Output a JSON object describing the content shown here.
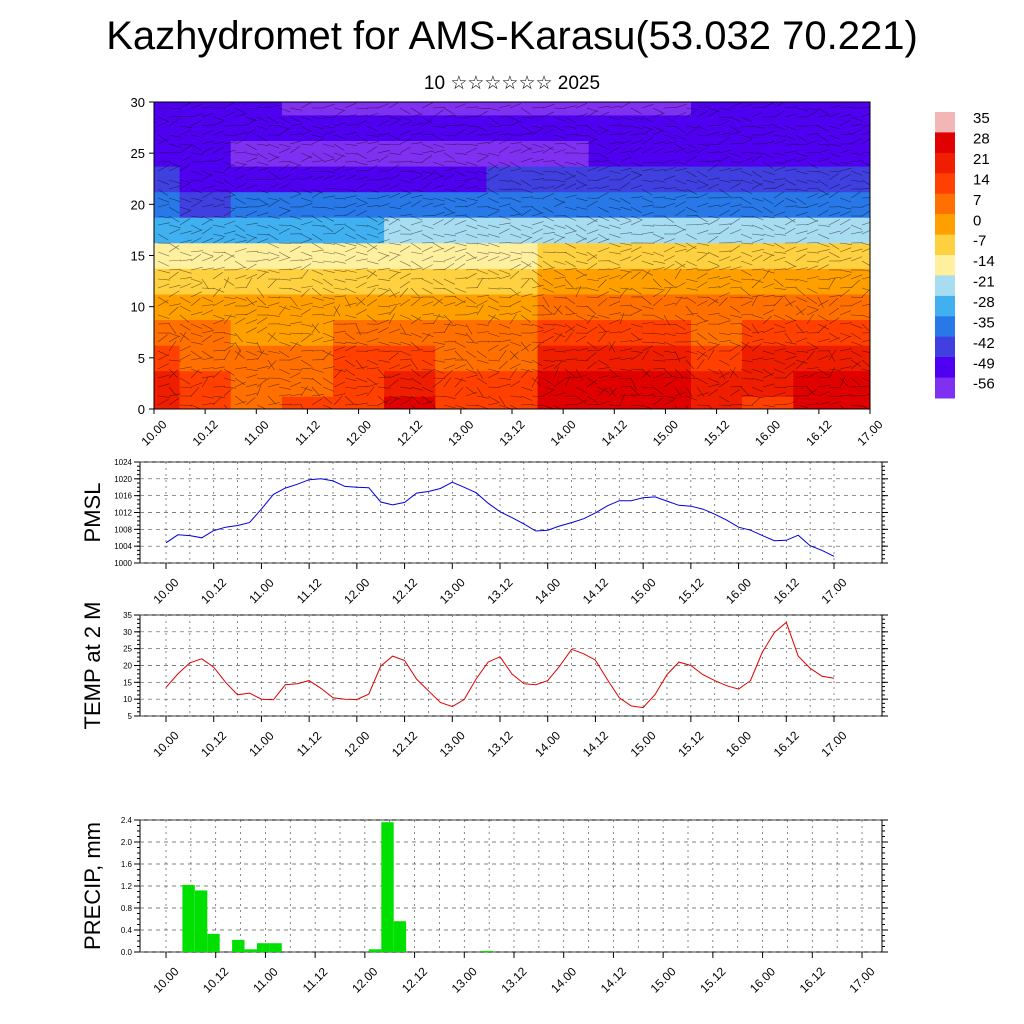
{
  "title": "Kazhydromet for AMS-Karasu(53.032 70.221)",
  "subtitle": "10 ☆☆☆☆☆☆ 2025",
  "time_labels": [
    "10.00",
    "10.12",
    "11.00",
    "11.12",
    "12.00",
    "12.12",
    "13.00",
    "13.12",
    "14.00",
    "14.12",
    "15.00",
    "15.12",
    "16.00",
    "16.12",
    "17.00"
  ],
  "colors": {
    "pmsl_line": "#0000dd",
    "temp_line": "#dd0000",
    "precip_bar": "#00e000"
  },
  "chart_data": [
    {
      "type": "heatmap",
      "title": "",
      "xlabel": "",
      "ylabel": "",
      "ylim": [
        0,
        30
      ],
      "yticks": [
        0,
        5,
        10,
        15,
        20,
        25,
        30
      ],
      "categories": [
        "10.00",
        "10.12",
        "11.00",
        "11.12",
        "12.00",
        "12.12",
        "13.00",
        "13.12",
        "14.00",
        "14.12",
        "15.00",
        "15.12",
        "16.00",
        "16.12",
        "17.00"
      ],
      "overlay": "wind barbs",
      "colorbar": {
        "labels": [
          "35",
          "28",
          "21",
          "14",
          "7",
          "0",
          "-7",
          "-14",
          "-21",
          "-28",
          "-35",
          "-42",
          "-49",
          "-56"
        ],
        "colors": [
          "#f2b6b6",
          "#e00000",
          "#f01e00",
          "#ff4000",
          "#ff7000",
          "#ffa000",
          "#ffd040",
          "#fff0a0",
          "#a8dcf0",
          "#40b0f0",
          "#2878e8",
          "#4040e0",
          "#5000f0",
          "#8030f0"
        ]
      },
      "y": [
        0,
        2.5,
        5,
        7.5,
        10,
        12.5,
        15,
        17.5,
        20,
        22.5,
        25,
        27.5,
        30
      ],
      "values": [
        [
          24,
          14,
          10,
          12,
          16,
          26,
          12,
          12,
          30,
          31,
          30,
          20,
          17,
          28,
          30
        ],
        [
          20,
          13,
          9,
          10,
          14,
          20,
          11,
          12,
          27,
          28,
          26,
          18,
          19,
          25,
          26
        ],
        [
          13,
          10,
          7,
          8,
          11,
          14,
          9,
          10,
          22,
          22,
          20,
          16,
          21,
          22,
          20
        ],
        [
          6,
          5,
          3,
          3,
          5,
          7,
          5,
          5,
          12,
          13,
          12,
          10,
          14,
          15,
          14
        ],
        [
          1,
          0,
          -1,
          -1,
          1,
          2,
          1,
          1,
          5,
          6,
          6,
          6,
          8,
          9,
          9
        ],
        [
          -5,
          -6,
          -6,
          -7,
          -5,
          -4,
          -4,
          -4,
          -2,
          -1,
          -1,
          -1,
          1,
          2,
          2
        ],
        [
          -14,
          -15,
          -14,
          -15,
          -13,
          -12,
          -12,
          -11,
          -10,
          -9,
          -9,
          -9,
          -8,
          -8,
          -8
        ],
        [
          -26,
          -27,
          -26,
          -26,
          -25,
          -24,
          -24,
          -23,
          -22,
          -21,
          -21,
          -21,
          -20,
          -20,
          -20
        ],
        [
          -38,
          -40,
          -38,
          -38,
          -37,
          -36,
          -36,
          -35,
          -34,
          -34,
          -34,
          -33,
          -33,
          -33,
          -33
        ],
        [
          -45,
          -47,
          -48,
          -47,
          -46,
          -46,
          -46,
          -45,
          -44,
          -44,
          -44,
          -44,
          -44,
          -43,
          -43
        ],
        [
          -48,
          -50,
          -53,
          -55,
          -55,
          -55,
          -55,
          -54,
          -53,
          -52,
          -52,
          -51,
          -50,
          -50,
          -50
        ],
        [
          -48,
          -49,
          -50,
          -51,
          -52,
          -52,
          -52,
          -52,
          -52,
          -51,
          -51,
          -50,
          -50,
          -50,
          -50
        ],
        [
          -50,
          -51,
          -52,
          -53,
          -54,
          -54,
          -54,
          -54,
          -53,
          -53,
          -53,
          -52,
          -52,
          -52,
          -52
        ]
      ]
    },
    {
      "type": "line",
      "ylabel": "PMSL",
      "ylim": [
        1000,
        1024
      ],
      "yticks": [
        1000,
        1004,
        1008,
        1012,
        1016,
        1020,
        1024
      ],
      "categories": [
        "10.00",
        "10.12",
        "11.00",
        "11.12",
        "12.00",
        "12.12",
        "13.00",
        "13.12",
        "14.00",
        "14.12",
        "15.00",
        "15.12",
        "16.00",
        "16.12",
        "17.00"
      ],
      "x": [
        0,
        3,
        6,
        9,
        12,
        15,
        18,
        21,
        24,
        27,
        30,
        33,
        36,
        39,
        42,
        45,
        48,
        51,
        54,
        57,
        60,
        63,
        66,
        69,
        72,
        75,
        78,
        81,
        84,
        87,
        90,
        93,
        96,
        99,
        102,
        105,
        108,
        111,
        114,
        117,
        120,
        123,
        126,
        129,
        132,
        135,
        138,
        141,
        144,
        147,
        150,
        153,
        156,
        159,
        162,
        165,
        168
      ],
      "series": [
        {
          "values": [
            1004.8,
            1006.7,
            1006.5,
            1006.0,
            1007.7,
            1008.5,
            1008.9,
            1009.6,
            1012.8,
            1016.3,
            1017.8,
            1018.7,
            1019.8,
            1020.0,
            1019.5,
            1018.2,
            1018.0,
            1017.9,
            1014.5,
            1013.8,
            1014.4,
            1016.6,
            1017.0,
            1017.7,
            1019.2,
            1018.0,
            1016.7,
            1014.2,
            1012.2,
            1010.8,
            1009.3,
            1007.6,
            1007.8,
            1008.8,
            1009.6,
            1010.5,
            1011.9,
            1013.6,
            1014.8,
            1014.8,
            1015.5,
            1015.7,
            1014.7,
            1013.7,
            1013.5,
            1012.8,
            1011.6,
            1010.2,
            1008.5,
            1007.8,
            1006.5,
            1005.3,
            1005.4,
            1006.6,
            1004.1,
            1003.0,
            1001.6
          ]
        }
      ]
    },
    {
      "type": "line",
      "ylabel": "TEMP at 2 M",
      "ylim": [
        5,
        35
      ],
      "yticks": [
        5,
        10,
        15,
        20,
        25,
        30,
        35
      ],
      "categories": [
        "10.00",
        "10.12",
        "11.00",
        "11.12",
        "12.00",
        "12.12",
        "13.00",
        "13.12",
        "14.00",
        "14.12",
        "15.00",
        "15.12",
        "16.00",
        "16.12",
        "17.00"
      ],
      "x": [
        0,
        3,
        6,
        9,
        12,
        15,
        18,
        21,
        24,
        27,
        30,
        33,
        36,
        39,
        42,
        45,
        48,
        51,
        54,
        57,
        60,
        63,
        66,
        69,
        72,
        75,
        78,
        81,
        84,
        87,
        90,
        93,
        96,
        99,
        102,
        105,
        108,
        111,
        114,
        117,
        120,
        123,
        126,
        129,
        132,
        135,
        138,
        141,
        144,
        147,
        150,
        153,
        156,
        159,
        162,
        165,
        168
      ],
      "series": [
        {
          "values": [
            13.5,
            17.5,
            20.8,
            22.0,
            19.5,
            15.0,
            11.3,
            11.8,
            10.0,
            9.8,
            14.3,
            14.6,
            15.5,
            13.2,
            10.4,
            10.0,
            9.9,
            11.5,
            19.8,
            22.8,
            21.5,
            16.0,
            12.5,
            9.0,
            7.8,
            9.9,
            16.0,
            21.0,
            22.6,
            17.5,
            14.6,
            14.3,
            15.5,
            19.8,
            24.8,
            23.5,
            21.6,
            15.8,
            10.4,
            8.0,
            7.5,
            11.4,
            17.3,
            21.0,
            20.0,
            17.3,
            15.5,
            14.0,
            13.0,
            15.5,
            24.0,
            29.8,
            32.8,
            22.8,
            19.2,
            16.8,
            16.2
          ]
        }
      ]
    },
    {
      "type": "bar",
      "ylabel": "PRECIP, mm",
      "ylim": [
        0,
        2.4
      ],
      "yticks": [
        0.0,
        0.4,
        0.8,
        1.2,
        1.6,
        2.0,
        2.4
      ],
      "yticklabels": [
        "0.0",
        "0.4",
        "0.8",
        "1.2",
        "1.6",
        "2.0",
        "2.4"
      ],
      "categories": [
        "10.00",
        "10.12",
        "11.00",
        "11.12",
        "12.00",
        "12.12",
        "13.00",
        "13.12",
        "14.00",
        "14.12",
        "15.00",
        "15.12",
        "16.00",
        "16.12",
        "17.00"
      ],
      "bar_width_hours": 3,
      "x": [
        3,
        6,
        9,
        15,
        18,
        21,
        24,
        48,
        51,
        54,
        75
      ],
      "values": [
        1.22,
        1.12,
        0.33,
        0.22,
        0.05,
        0.16,
        0.16,
        0.05,
        2.36,
        0.56,
        0.02
      ]
    }
  ]
}
